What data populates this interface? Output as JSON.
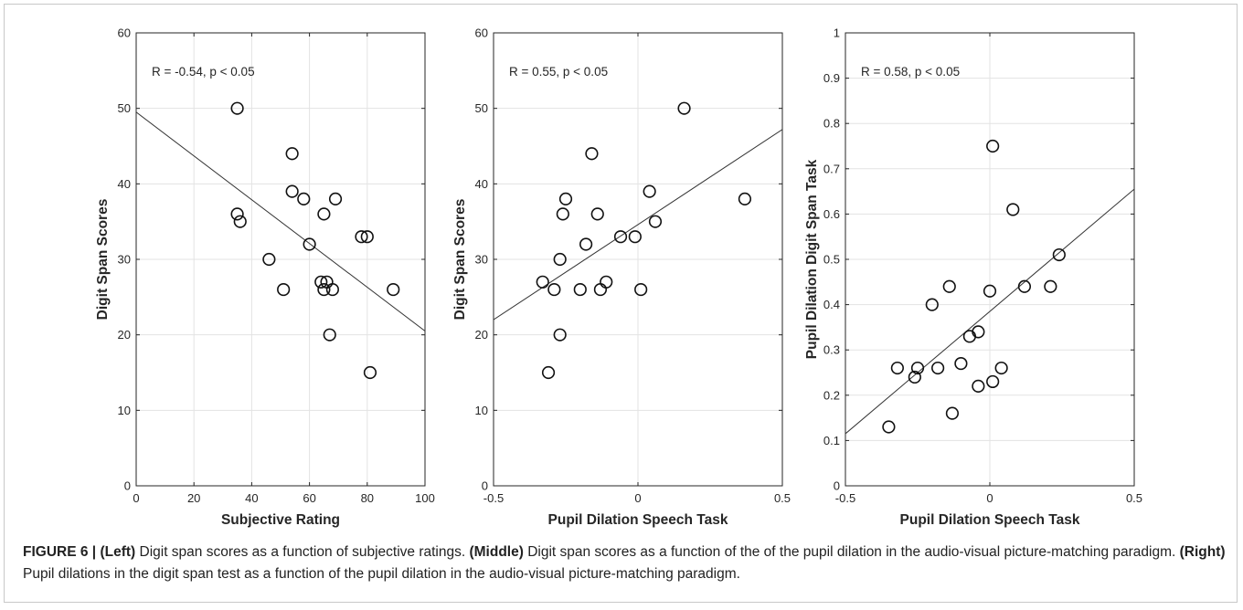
{
  "caption": {
    "figure_label": "FIGURE 6 | ",
    "left_label": "(Left)",
    "left_text": " Digit span scores as a function of subjective ratings. ",
    "middle_label": "(Middle)",
    "middle_text": " Digit span scores as a function of the of the pupil dilation in the audio-visual picture-matching paradigm. ",
    "right_label": "(Right)",
    "right_text": " Pupil dilations in the digit span test as a function of the pupil dilation in the audio-visual picture-matching paradigm."
  },
  "chart_data": [
    {
      "type": "scatter",
      "title": "",
      "annotation": "R = -0.54, p < 0.05",
      "xlabel": "Subjective Rating",
      "ylabel": "Digit Span Scores",
      "xlim": [
        0,
        100
      ],
      "ylim": [
        0,
        60
      ],
      "xticks": [
        0,
        20,
        40,
        60,
        80,
        100
      ],
      "yticks": [
        0,
        10,
        20,
        30,
        40,
        50,
        60
      ],
      "xtick_labels": [
        "0",
        "20",
        "40",
        "60",
        "80",
        "100"
      ],
      "ytick_labels": [
        "0",
        "10",
        "20",
        "30",
        "40",
        "50",
        "60"
      ],
      "grid": true,
      "fit_line": [
        [
          0,
          49.5
        ],
        [
          100,
          20.5
        ]
      ],
      "points": [
        [
          35,
          50
        ],
        [
          54,
          44
        ],
        [
          54,
          39
        ],
        [
          58,
          38
        ],
        [
          69,
          38
        ],
        [
          35,
          36
        ],
        [
          36,
          35
        ],
        [
          65,
          36
        ],
        [
          78,
          33
        ],
        [
          80,
          33
        ],
        [
          60,
          32
        ],
        [
          46,
          30
        ],
        [
          64,
          27
        ],
        [
          66,
          27
        ],
        [
          65,
          26
        ],
        [
          68,
          26
        ],
        [
          51,
          26
        ],
        [
          89,
          26
        ],
        [
          67,
          20
        ],
        [
          81,
          15
        ]
      ]
    },
    {
      "type": "scatter",
      "title": "",
      "annotation": "R = 0.55, p < 0.05",
      "xlabel": "Pupil Dilation Speech Task",
      "ylabel": "Digit Span Scores",
      "xlim": [
        -0.5,
        0.5
      ],
      "ylim": [
        0,
        60
      ],
      "xticks": [
        -0.5,
        0,
        0.5
      ],
      "yticks": [
        0,
        10,
        20,
        30,
        40,
        50,
        60
      ],
      "xtick_labels": [
        "-0.5",
        "0",
        "0.5"
      ],
      "ytick_labels": [
        "0",
        "10",
        "20",
        "30",
        "40",
        "50",
        "60"
      ],
      "grid": true,
      "fit_line": [
        [
          -0.5,
          22
        ],
        [
          0.5,
          47.2
        ]
      ],
      "points": [
        [
          0.16,
          50
        ],
        [
          -0.16,
          44
        ],
        [
          0.04,
          39
        ],
        [
          -0.25,
          38
        ],
        [
          0.37,
          38
        ],
        [
          -0.26,
          36
        ],
        [
          -0.14,
          36
        ],
        [
          0.06,
          35
        ],
        [
          -0.06,
          33
        ],
        [
          -0.01,
          33
        ],
        [
          -0.18,
          32
        ],
        [
          -0.27,
          30
        ],
        [
          -0.33,
          27
        ],
        [
          -0.11,
          27
        ],
        [
          -0.29,
          26
        ],
        [
          -0.2,
          26
        ],
        [
          -0.13,
          26
        ],
        [
          0.01,
          26
        ],
        [
          -0.27,
          20
        ],
        [
          -0.31,
          15
        ]
      ]
    },
    {
      "type": "scatter",
      "title": "",
      "annotation": "R = 0.58, p < 0.05",
      "xlabel": "Pupil Dilation Speech Task",
      "ylabel": "Pupil Dilation Digit Span Task",
      "xlim": [
        -0.5,
        0.5
      ],
      "ylim": [
        0,
        1
      ],
      "xticks": [
        -0.5,
        0,
        0.5
      ],
      "yticks": [
        0,
        0.1,
        0.2,
        0.3,
        0.4,
        0.5,
        0.6,
        0.7,
        0.8,
        0.9,
        1
      ],
      "xtick_labels": [
        "-0.5",
        "0",
        "0.5"
      ],
      "ytick_labels": [
        "0",
        "0.1",
        "0.2",
        "0.3",
        "0.4",
        "0.5",
        "0.6",
        "0.7",
        "0.8",
        "0.9",
        "1"
      ],
      "grid": true,
      "fit_line": [
        [
          -0.5,
          0.115
        ],
        [
          0.5,
          0.655
        ]
      ],
      "points": [
        [
          0.01,
          0.75
        ],
        [
          0.08,
          0.61
        ],
        [
          0.24,
          0.51
        ],
        [
          -0.14,
          0.44
        ],
        [
          0.12,
          0.44
        ],
        [
          0.21,
          0.44
        ],
        [
          0.0,
          0.43
        ],
        [
          -0.2,
          0.4
        ],
        [
          -0.04,
          0.34
        ],
        [
          -0.07,
          0.33
        ],
        [
          -0.1,
          0.27
        ],
        [
          -0.32,
          0.26
        ],
        [
          -0.25,
          0.26
        ],
        [
          -0.18,
          0.26
        ],
        [
          0.04,
          0.26
        ],
        [
          -0.26,
          0.24
        ],
        [
          0.01,
          0.23
        ],
        [
          -0.04,
          0.22
        ],
        [
          -0.13,
          0.16
        ],
        [
          -0.35,
          0.13
        ]
      ]
    }
  ]
}
